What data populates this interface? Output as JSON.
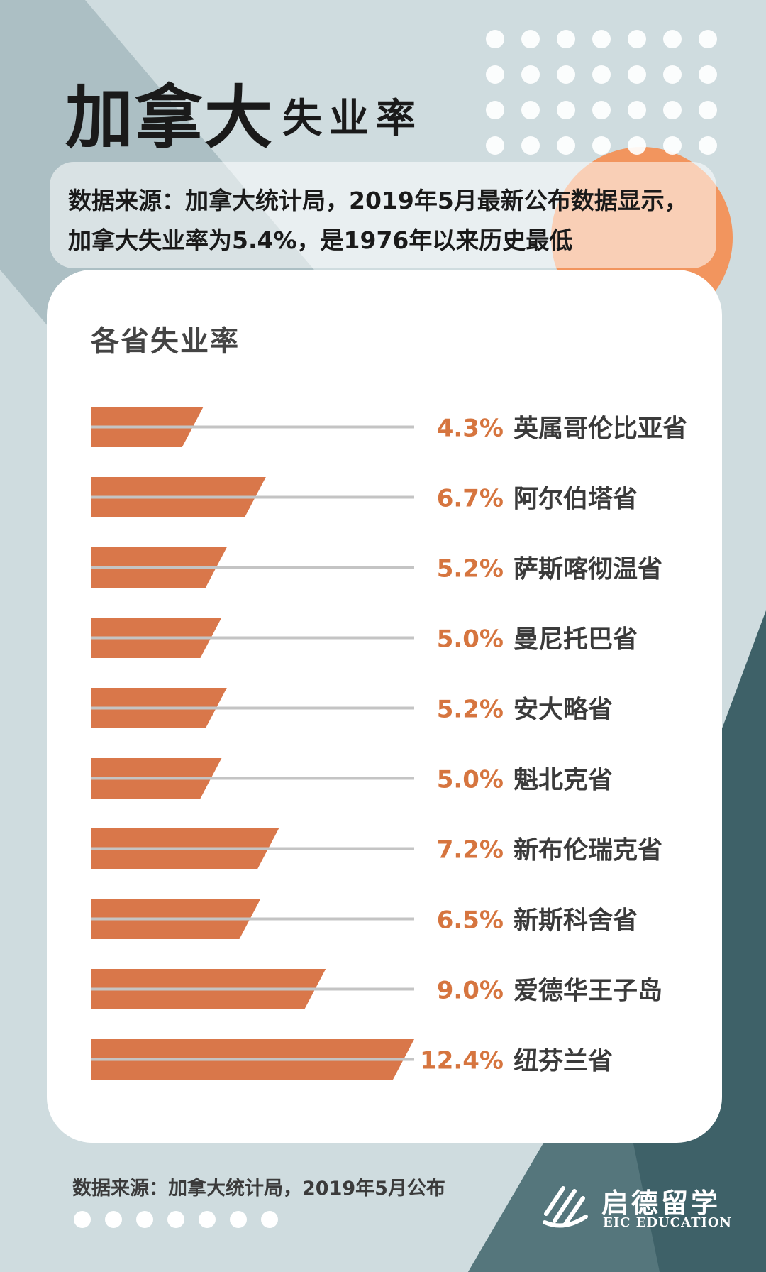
{
  "header": {
    "title_main": "加拿大",
    "title_sub": "失业率"
  },
  "intro": {
    "line1": "数据来源：加拿大统计局，2019年5月最新公布数据显示，",
    "line2": "加拿大失业率为5.4%，是1976年以来历史最低"
  },
  "colors": {
    "bar": "#d9774a",
    "accent_orange": "#f2955e",
    "dark_teal": "#3e6168",
    "slate": "#8aa3a8",
    "pct_text": "#d6753f",
    "label_text": "#3b3b3b",
    "line": "#c4c4c4"
  },
  "chart_data": {
    "type": "bar",
    "title": "各省失业率",
    "orientation": "horizontal",
    "unit": "%",
    "categories": [
      "英属哥伦比亚省",
      "阿尔伯塔省",
      "萨斯喀彻温省",
      "曼尼托巴省",
      "安大略省",
      "魁北克省",
      "新布伦瑞克省",
      "新斯科舍省",
      "爱德华王子岛",
      "纽芬兰省"
    ],
    "values": [
      4.3,
      6.7,
      5.2,
      5.0,
      5.2,
      5.0,
      7.2,
      6.5,
      9.0,
      12.4
    ],
    "value_labels": [
      "4.3%",
      "6.7%",
      "5.2%",
      "5.0%",
      "5.2%",
      "5.0%",
      "7.2%",
      "6.5%",
      "9.0%",
      "12.4%"
    ],
    "xlim": [
      0,
      12.4
    ]
  },
  "footer": {
    "source": "数据来源：加拿大统计局，2019年5月公布",
    "logo_cn": "启德留学",
    "logo_en": "EIC EDUCATION"
  }
}
